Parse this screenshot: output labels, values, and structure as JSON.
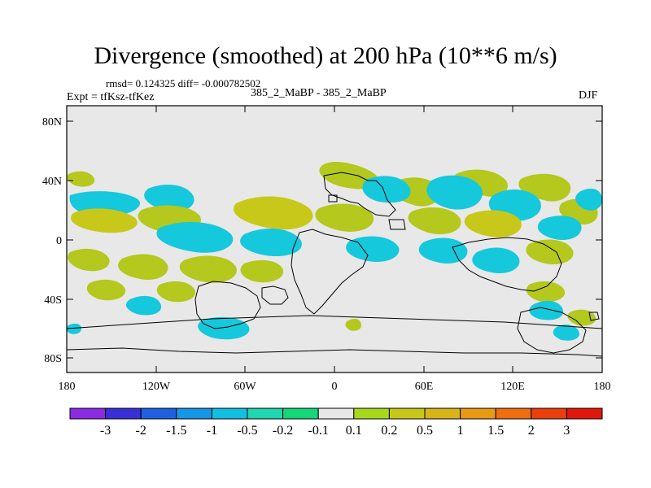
{
  "title": "Divergence (smoothed) at 200 hPa (10**6 m/s)",
  "stats_line": "rmsd= 0.124325 diff= -0.000782502",
  "experiment_label": "Expt = tfKsz-tfKez",
  "model_label": "385_2_MaBP - 385_2_MaBP",
  "season_label": "DJF",
  "x_axis_labels": [
    "180",
    "120W",
    "60W",
    "0",
    "60E",
    "120E",
    "180"
  ],
  "y_axis_labels": [
    "80N",
    "40N",
    "0",
    "40S",
    "80S"
  ],
  "colorbar": {
    "colors": [
      "#8a2be2",
      "#3a2fd6",
      "#1f5fe0",
      "#1596e6",
      "#12bfe0",
      "#1fd6b0",
      "#16d67a",
      "#e8e8e8",
      "#a8d81e",
      "#c8c81a",
      "#d8b41a",
      "#e89a14",
      "#ee6e10",
      "#ea3e0c",
      "#e0180c"
    ],
    "labels": [
      "-3",
      "-2",
      "-1.5",
      "-1",
      "-0.5",
      "-0.2",
      "-0.1",
      "0.1",
      "0.2",
      "0.5",
      "1",
      "1.5",
      "2",
      "3"
    ]
  },
  "colors": {
    "background_field": "#e8e8e8",
    "positive_field": "#b4c81e",
    "negative_field": "#16c8dc",
    "strong_negative": "#12a8e0",
    "mid_positive": "#d8b41a"
  }
}
